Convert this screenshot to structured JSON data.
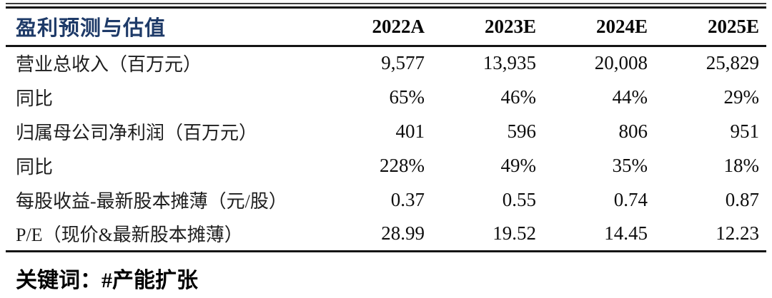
{
  "table": {
    "title": "盈利预测与估值",
    "columns": [
      "2022A",
      "2023E",
      "2024E",
      "2025E"
    ],
    "rows": [
      {
        "label": "营业总收入（百万元）",
        "values": [
          "9,577",
          "13,935",
          "20,008",
          "25,829"
        ]
      },
      {
        "label": "同比",
        "values": [
          "65%",
          "46%",
          "44%",
          "29%"
        ]
      },
      {
        "label": "归属母公司净利润（百万元）",
        "values": [
          "401",
          "596",
          "806",
          "951"
        ]
      },
      {
        "label": "同比",
        "values": [
          "228%",
          "49%",
          "35%",
          "18%"
        ]
      },
      {
        "label": "每股收益-最新股本摊薄（元/股）",
        "values": [
          "0.37",
          "0.55",
          "0.74",
          "0.87"
        ]
      },
      {
        "label": "P/E（现价&最新股本摊薄）",
        "values": [
          "28.99",
          "19.52",
          "14.45",
          "12.23"
        ]
      }
    ]
  },
  "footer": {
    "keywords_label": "关键词：",
    "keyword": "#产能扩张"
  },
  "colors": {
    "title_navy": "#1e3a68",
    "body_text": "#0d0d0d",
    "rule": "#141414",
    "background": "#ffffff"
  }
}
